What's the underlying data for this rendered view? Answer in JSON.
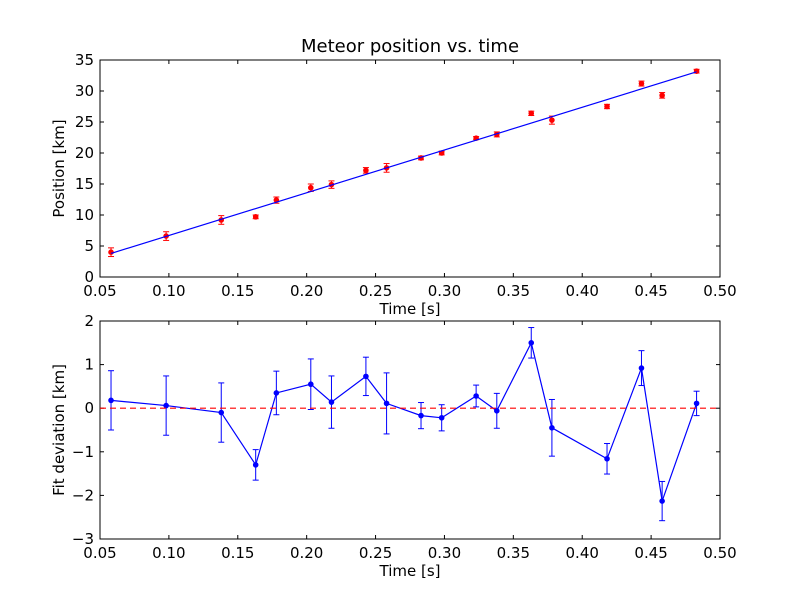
{
  "chart_data": [
    {
      "type": "scatter",
      "title": "Meteor position vs. time",
      "xlabel": "Time [s]",
      "ylabel": "Position [km]",
      "xlim": [
        0.05,
        0.5
      ],
      "ylim": [
        0,
        35
      ],
      "xticks": [
        "0.05",
        "0.10",
        "0.15",
        "0.20",
        "0.25",
        "0.30",
        "0.35",
        "0.40",
        "0.45",
        "0.50"
      ],
      "yticks": [
        "0",
        "5",
        "10",
        "15",
        "20",
        "25",
        "30",
        "35"
      ],
      "grid": false,
      "series": [
        {
          "kind": "errorbar",
          "color": "#ff0000",
          "errcolor": "#ff0000",
          "x": [
            0.058,
            0.098,
            0.138,
            0.163,
            0.178,
            0.203,
            0.218,
            0.243,
            0.258,
            0.283,
            0.298,
            0.323,
            0.338,
            0.363,
            0.378,
            0.418,
            0.443,
            0.458,
            0.483
          ],
          "y": [
            4.0,
            6.6,
            9.2,
            9.7,
            12.4,
            14.4,
            14.9,
            17.2,
            17.6,
            19.2,
            20.0,
            22.4,
            23.0,
            26.4,
            25.3,
            27.5,
            31.2,
            29.3,
            33.2
          ],
          "err": [
            0.7,
            0.7,
            0.7,
            0.3,
            0.5,
            0.6,
            0.6,
            0.45,
            0.7,
            0.3,
            0.3,
            0.25,
            0.4,
            0.35,
            0.65,
            0.35,
            0.4,
            0.45,
            0.3
          ]
        },
        {
          "kind": "line",
          "color": "#0000ff",
          "x": [
            0.058,
            0.483
          ],
          "y": [
            3.8,
            33.1
          ]
        }
      ]
    },
    {
      "type": "line",
      "xlabel": "Time [s]",
      "ylabel": "Fit deviation [km]",
      "xlim": [
        0.05,
        0.5
      ],
      "ylim": [
        -3,
        2
      ],
      "xticks": [
        "0.05",
        "0.10",
        "0.15",
        "0.20",
        "0.25",
        "0.30",
        "0.35",
        "0.40",
        "0.45",
        "0.50"
      ],
      "yticks": [
        "−3",
        "−2",
        "−1",
        "0",
        "1",
        "2"
      ],
      "grid": false,
      "series": [
        {
          "kind": "errorbar-line",
          "color": "#0000ff",
          "errcolor": "#0000ff",
          "x": [
            0.058,
            0.098,
            0.138,
            0.163,
            0.178,
            0.203,
            0.218,
            0.243,
            0.258,
            0.283,
            0.298,
            0.323,
            0.338,
            0.363,
            0.378,
            0.418,
            0.443,
            0.458,
            0.483
          ],
          "y": [
            0.18,
            0.06,
            -0.1,
            -1.3,
            0.35,
            0.55,
            0.14,
            0.73,
            0.11,
            -0.17,
            -0.22,
            0.28,
            -0.06,
            1.5,
            -0.45,
            -1.16,
            0.92,
            -2.13,
            0.11
          ],
          "err": [
            0.68,
            0.68,
            0.68,
            0.35,
            0.5,
            0.58,
            0.6,
            0.44,
            0.7,
            0.3,
            0.3,
            0.25,
            0.4,
            0.35,
            0.65,
            0.35,
            0.4,
            0.45,
            0.28
          ]
        },
        {
          "kind": "hline",
          "color": "#ff0000",
          "dashed": true,
          "y": 0
        }
      ]
    }
  ]
}
